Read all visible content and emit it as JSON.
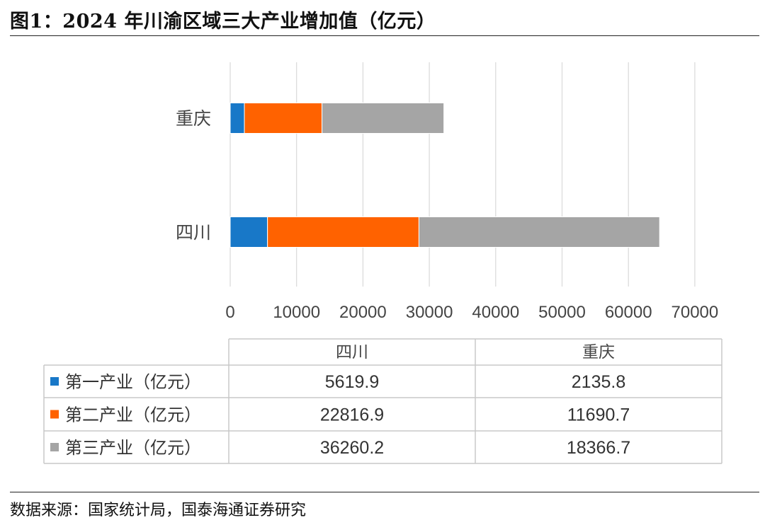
{
  "header": {
    "title": "图1：2024 年川渝区域三大产业增加值（亿元）"
  },
  "footer": {
    "source": "数据来源：国家统计局，国泰海通证券研究"
  },
  "chart_data": {
    "type": "bar",
    "orientation": "horizontal",
    "stacked": true,
    "title": "",
    "categories": [
      "重庆",
      "四川"
    ],
    "xlim": [
      0,
      70000
    ],
    "xticks": [
      "0",
      "10000",
      "20000",
      "30000",
      "40000",
      "50000",
      "60000",
      "70000"
    ],
    "grid": true,
    "legend": "table-below",
    "series": [
      {
        "name": "第一产业（亿元）",
        "color": "#1878c8",
        "values": [
          2135.8,
          5619.9
        ]
      },
      {
        "name": "第二产业（亿元）",
        "color": "#ff6200",
        "values": [
          11690.7,
          22816.9
        ]
      },
      {
        "name": "第三产业（亿元）",
        "color": "#a5a5a5",
        "values": [
          18366.7,
          36260.2
        ]
      }
    ],
    "table": {
      "columns": [
        "四川",
        "重庆"
      ],
      "rows": [
        {
          "label": "第一产业（亿元）",
          "values": [
            "5619.9",
            "2135.8"
          ]
        },
        {
          "label": "第二产业（亿元）",
          "values": [
            "22816.9",
            "11690.7"
          ]
        },
        {
          "label": "第三产业（亿元）",
          "values": [
            "36260.2",
            "18366.7"
          ]
        }
      ]
    }
  }
}
